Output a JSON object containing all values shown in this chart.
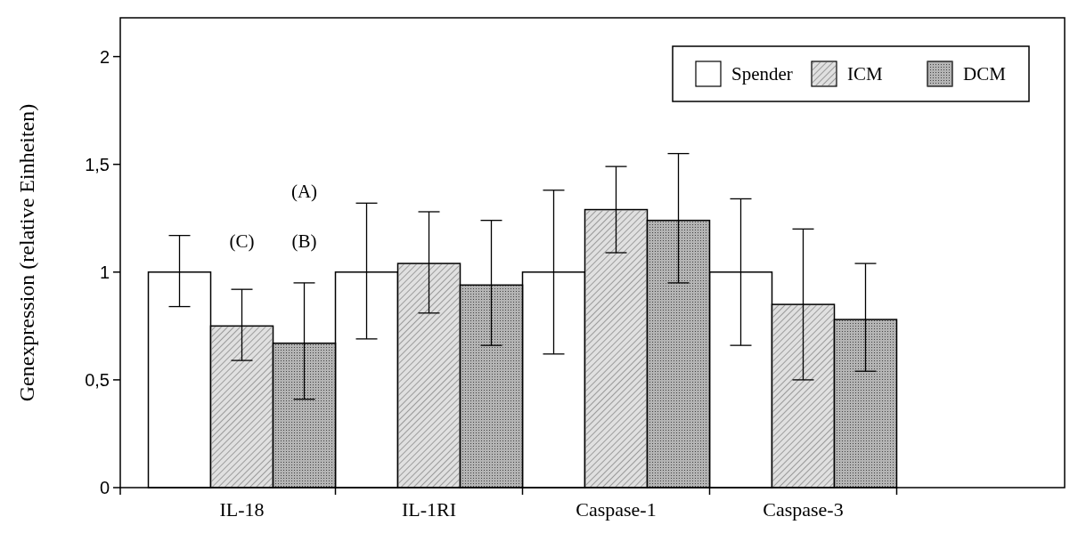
{
  "chart_data": {
    "type": "bar",
    "ylabel": "Genexpression (relative Einheiten)",
    "categories": [
      "IL-18",
      "IL-1RI",
      "Caspase-1",
      "Caspase-3"
    ],
    "series": [
      {
        "name": "Spender",
        "color": "#ffffff",
        "values": [
          1,
          1,
          1,
          1
        ],
        "errors": [
          [
            0.84,
            1.17
          ],
          [
            0.69,
            1.32
          ],
          [
            0.62,
            1.38
          ],
          [
            0.66,
            1.34
          ]
        ]
      },
      {
        "name": "ICM",
        "color": "#e0e0e0",
        "values": [
          0.75,
          1.04,
          1.29,
          0.85
        ],
        "errors": [
          [
            0.59,
            0.92
          ],
          [
            0.81,
            1.28
          ],
          [
            1.09,
            1.49
          ],
          [
            0.5,
            1.2
          ]
        ]
      },
      {
        "name": "DCM",
        "color": "#b4b4b4",
        "values": [
          0.67,
          0.94,
          1.24,
          0.78
        ],
        "errors": [
          [
            0.41,
            0.95
          ],
          [
            0.66,
            1.24
          ],
          [
            0.95,
            1.55
          ],
          [
            0.54,
            1.04
          ]
        ]
      }
    ],
    "ylim": [
      0,
      2.18
    ],
    "yticks": [
      0,
      {
        "value": 0.5,
        "label": "0,5"
      },
      1,
      {
        "value": 1.5,
        "label": "1,5"
      },
      2
    ],
    "legend": "top right",
    "grid": false,
    "annotations": [
      "(C)",
      "(B)",
      "(A)"
    ]
  }
}
